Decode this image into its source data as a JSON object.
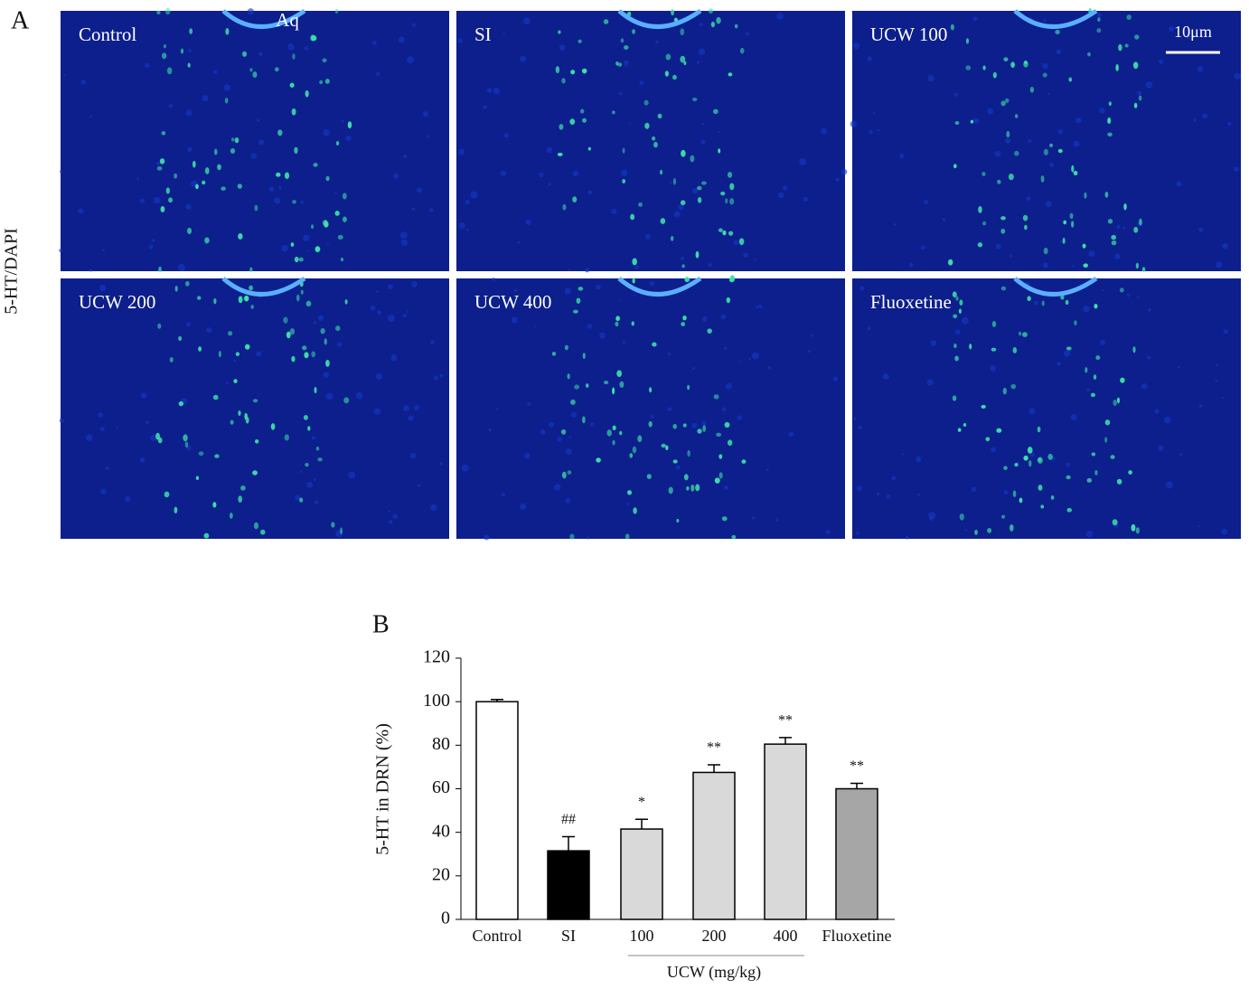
{
  "panel_labels": [
    "A",
    "B"
  ],
  "panel_a": {
    "ylabel": "5-HT/DAPI",
    "aq_label": "Aq",
    "scale_bar": "10μm",
    "images": [
      "Control",
      "SI",
      "UCW 100",
      "UCW 200",
      "UCW 400",
      "Fluoxetine"
    ]
  },
  "chart_data": {
    "type": "bar",
    "ylabel": "5-HT in DRN (%)",
    "categories": [
      "Control",
      "SI",
      "100",
      "200",
      "400",
      "Fluoxetine"
    ],
    "group_label": "UCW (mg/kg)",
    "values": [
      100,
      31.5,
      41.5,
      67.5,
      80.5,
      60
    ],
    "errors": [
      1,
      6.5,
      4.5,
      3.5,
      3,
      2.5
    ],
    "annotations": [
      null,
      "##",
      "*",
      "**",
      "**",
      "**"
    ],
    "colors": [
      "#ffffff",
      "#000000",
      "#d9d9d9",
      "#d9d9d9",
      "#d9d9d9",
      "#a6a6a6"
    ],
    "ylim": [
      0,
      120
    ],
    "yticks": [
      0,
      20,
      40,
      60,
      80,
      100,
      120
    ]
  }
}
